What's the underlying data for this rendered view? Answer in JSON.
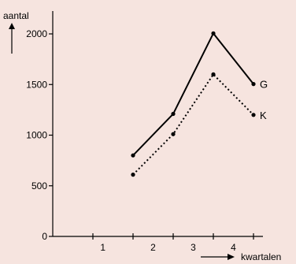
{
  "chart_data": {
    "type": "line",
    "title": "",
    "ylabel": "aantal",
    "xlabel": "kwartalen",
    "ylim": [
      0,
      2000
    ],
    "yticks": [
      0,
      500,
      1000,
      1500,
      2000
    ],
    "ytick_labels": [
      "0",
      "500",
      "1000",
      "1500",
      "2000"
    ],
    "xticks": [
      1,
      2,
      3,
      4,
      5
    ],
    "xlim": [
      0,
      5
    ],
    "x_category_labels": [
      "1",
      "2",
      "3",
      "4"
    ],
    "grid": false,
    "legend": "none (series labeled at line ends)",
    "x": [
      2,
      3,
      4,
      5
    ],
    "series": [
      {
        "name": "G",
        "style": "solid",
        "color": "#000000",
        "values": [
          800,
          1210,
          2005,
          1505
        ]
      },
      {
        "name": "K",
        "style": "dotted",
        "color": "#000000",
        "values": [
          610,
          1010,
          1600,
          1200
        ]
      }
    ]
  }
}
